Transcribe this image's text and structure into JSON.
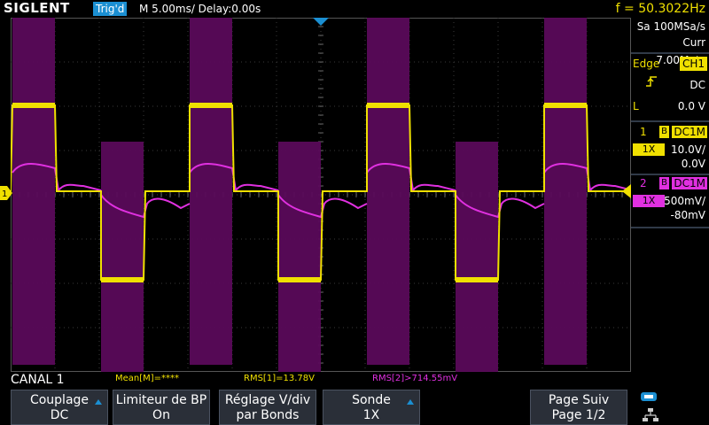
{
  "header": {
    "brand": "SIGLENT",
    "trigger_status": "Trig'd",
    "timebase": "M 5.00ms/ Delay:0.00s",
    "frequency": "f = 50.3022Hz"
  },
  "acquisition": {
    "sample_rate": "Sa 100MSa/s",
    "memory_depth": "Curr 7.00Mpts"
  },
  "trigger": {
    "type": "Edge",
    "source": "CH1",
    "coupling": "DC",
    "level_label": "L",
    "level": "0.0 V"
  },
  "channels": [
    {
      "number": "1",
      "bw_flag": "B",
      "coupling": "DC1M",
      "probe": "1X",
      "scale": "10.0V/",
      "offset": "0.0V",
      "color": "#f0e000"
    },
    {
      "number": "2",
      "bw_flag": "B",
      "coupling": "DC1M",
      "probe": "1X",
      "scale": "500mV/",
      "offset": "-80mV",
      "color": "#e030e0"
    }
  ],
  "measurements": {
    "menu_title": "CANAL 1",
    "mean": "Mean[M]=****",
    "rms1": "RMS[1]=13.78V",
    "rms2": "RMS[2]>714.55mV"
  },
  "softkeys": [
    {
      "line1": "Couplage",
      "line2": "DC",
      "has_arrow": true
    },
    {
      "line1": "Limiteur de BP",
      "line2": "On",
      "has_arrow": false
    },
    {
      "line1": "Réglage V/div",
      "line2": "par Bonds",
      "has_arrow": false
    },
    {
      "line1": "Sonde",
      "line2": "1X",
      "has_arrow": true
    },
    {
      "line1": "Page Suiv",
      "line2": "Page 1/2",
      "has_arrow": false
    }
  ],
  "colors": {
    "ch1": "#f0e000",
    "ch2": "#e030e0",
    "ch2_persist": "#5a0a5a",
    "accent": "#1b8fd2",
    "grid": "#3a3a3a"
  },
  "icons": {
    "trigger_edge": "rising-edge-icon",
    "storage": "usb-icon",
    "network": "network-icon"
  }
}
